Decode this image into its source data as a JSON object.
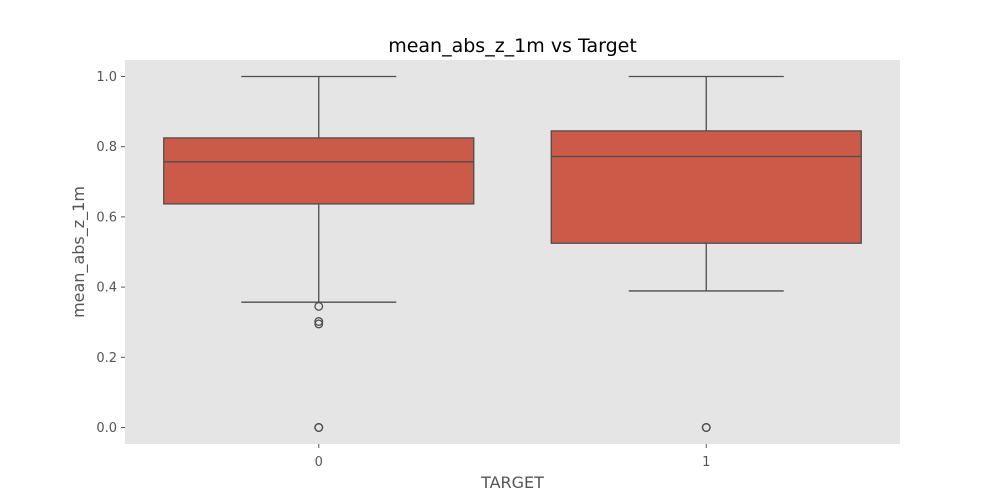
{
  "chart_data": {
    "type": "box",
    "title": "mean_abs_z_1m vs Target",
    "xlabel": "TARGET",
    "ylabel": "mean_abs_z_1m",
    "categories": [
      "0",
      "1"
    ],
    "ylim": [
      -0.047,
      1.047
    ],
    "yticks": [
      0.0,
      0.2,
      0.4,
      0.6,
      0.8,
      1.0
    ],
    "ytick_labels": [
      "0.0",
      "0.2",
      "0.4",
      "0.6",
      "0.8",
      "1.0"
    ],
    "grid": false,
    "boxes": [
      {
        "category": "0",
        "whisker_low": 0.357,
        "q1": 0.637,
        "median": 0.757,
        "q3": 0.825,
        "whisker_high": 1.0,
        "outliers": [
          0.345,
          0.302,
          0.295,
          0.0,
          0.0
        ]
      },
      {
        "category": "1",
        "whisker_low": 0.389,
        "q1": 0.525,
        "median": 0.772,
        "q3": 0.845,
        "whisker_high": 1.0,
        "outliers": [
          0.0,
          0.0
        ]
      }
    ],
    "colors": {
      "box_fill": "#cc5a49",
      "box_edge": "#4d4d4d",
      "plot_background": "#e5e5e5",
      "tick": "#555555"
    }
  }
}
